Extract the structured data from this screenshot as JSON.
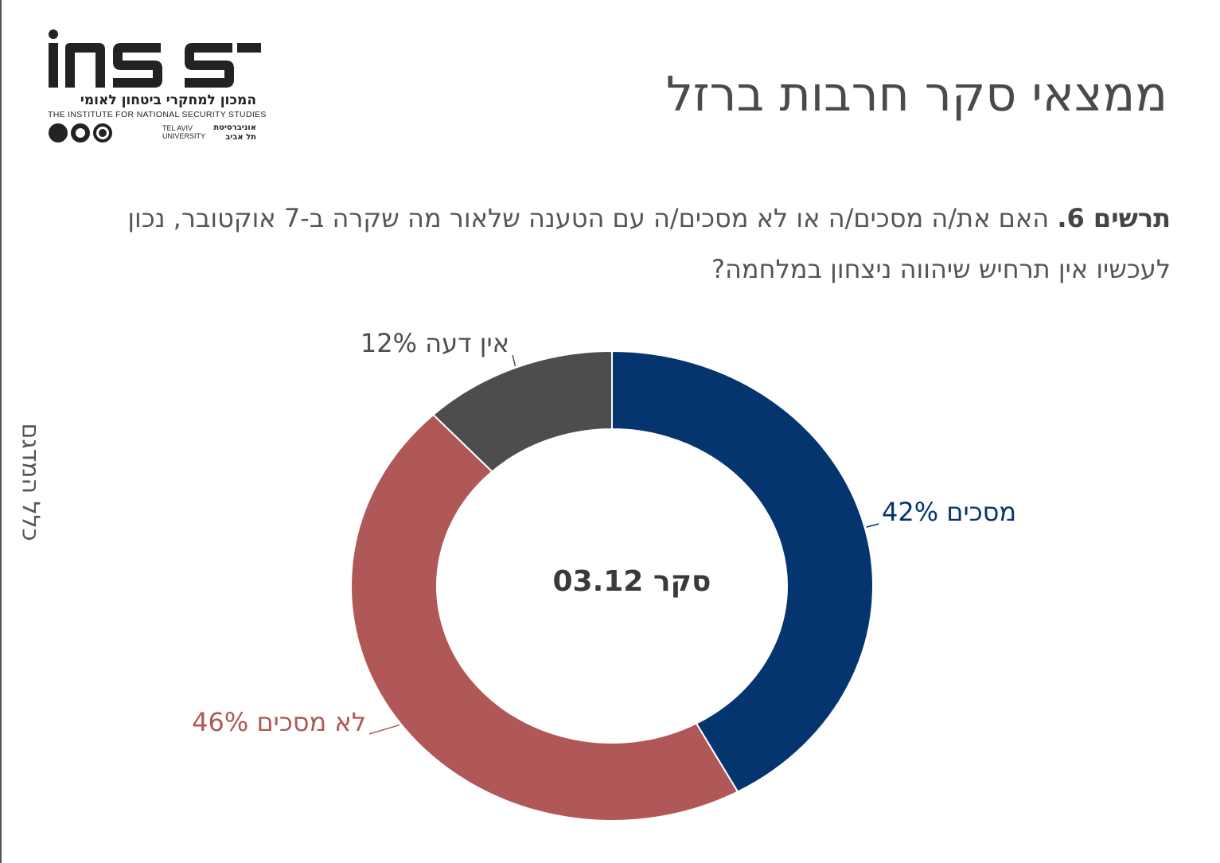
{
  "logo": {
    "wordmark": "iNSS",
    "hebrew_name": "המכון למחקרי ביטחון לאומי",
    "english_name": "THE INSTITUTE FOR NATIONAL SECURITY STUDIES",
    "university_en_line1": "TEL AVIV",
    "university_en_line2": "UNIVERSITY",
    "university_he_line1": "אוניברסיטת",
    "university_he_line2": "תל אביב"
  },
  "page_title": "ממצאי סקר חרבות ברזל",
  "question": {
    "figure_label": "תרשים 6.",
    "text": "האם את/ה מסכים/ה או לא מסכים/ה עם הטענה שלאור מה שקרה ב-7 אוקטובר, נכון לעכשיו אין תרחיש שיהווה ניצחון במלחמה?"
  },
  "side_label": "כלל המדגם",
  "chart_data": {
    "type": "pie",
    "style": "donut",
    "center_label": "סקר 03.12",
    "slices": [
      {
        "label": "מסכים",
        "value": 42,
        "value_label": "42%",
        "color": "#05356f"
      },
      {
        "label": "לא מסכים",
        "value": 46,
        "value_label": "46%",
        "color": "#b05858"
      },
      {
        "label": "אין דעה",
        "value": 12,
        "value_label": "12%",
        "color": "#4d4d4d"
      }
    ],
    "start": "top",
    "direction": "clockwise",
    "legend": "none"
  },
  "colors": {
    "title_text": "#4a4a4a",
    "body_text": "#555555",
    "agree": "#05356f",
    "disagree": "#b05858",
    "no_opinion": "#4d4d4d"
  }
}
